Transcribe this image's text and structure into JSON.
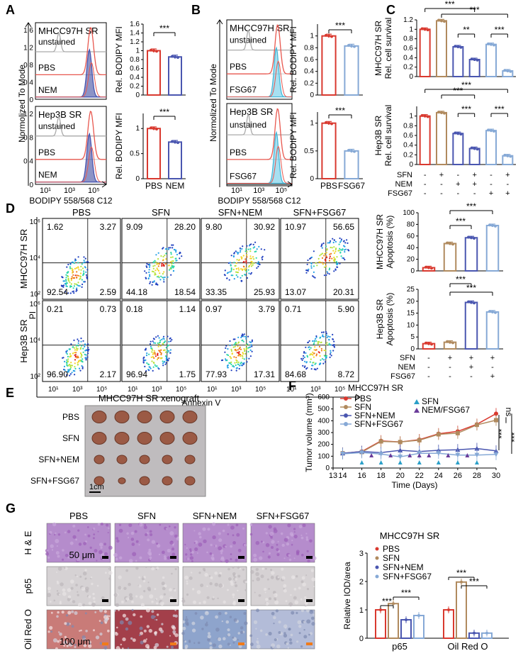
{
  "panel_letters": [
    "A",
    "B",
    "C",
    "D",
    "E",
    "F",
    "G"
  ],
  "colors": {
    "pbs": "#d9392f",
    "sfn": "#b08a5e",
    "nem": "#4a56b0",
    "fsg": "#86a9d6",
    "nemfill": "#2e3a98",
    "fsgfill": "#5fc6e6",
    "unstained": "#aaaaaa",
    "red": "#e8574e"
  },
  "A": {
    "flow_ylabel": "Normolized To Mode",
    "flow_xlabel": "BODIPY 558/568 C12",
    "x_ticks": [
      "10¹",
      "10³",
      "10⁵"
    ],
    "top": {
      "cell": "MHCC97H SR",
      "tracks": [
        "unstained",
        "PBS",
        "NEM"
      ]
    },
    "bottom": {
      "cell": "Hep3B SR",
      "tracks": [
        "unstained",
        "PBS",
        "NEM"
      ]
    }
  },
  "B": {
    "flow_ylabel": "Normolized To Mode",
    "flow_xlabel": "BODIPY 558/568 C12",
    "x_ticks": [
      "10¹",
      "10³",
      "10⁵"
    ],
    "top": {
      "cell": "MHCC97H SR",
      "tracks": [
        "unstained",
        "PBS",
        "FSG67"
      ]
    },
    "bottom": {
      "cell": "Hep3B SR",
      "tracks": [
        "unstained",
        "PBS",
        "FSG67"
      ]
    }
  },
  "C_row": {
    "labels": [
      "SFN",
      "NEM",
      "FSG67"
    ],
    "marks": [
      [
        "-",
        "+",
        "-",
        "+",
        "-",
        "+"
      ],
      [
        "-",
        "-",
        "+",
        "+",
        "-",
        "-"
      ],
      [
        "-",
        "-",
        "-",
        "-",
        "+",
        "+"
      ]
    ]
  },
  "D": {
    "cols": [
      "PBS",
      "SFN",
      "SFN+NEM",
      "SFN+FSG67"
    ],
    "rows": [
      "MHCC97H SR",
      "Hep3B SR"
    ],
    "ylabel": "PI",
    "xlabel": "Annexin V",
    "y_ticks": [
      "10⁶",
      "10⁴",
      "10²"
    ],
    "x_ticks": [
      "10¹",
      "10³",
      "10⁵"
    ],
    "quadrants": [
      [
        [
          "1.62",
          "3.27",
          "92.54",
          "2.59"
        ],
        [
          "9.09",
          "28.20",
          "44.18",
          "18.54"
        ],
        [
          "9.80",
          "30.92",
          "33.35",
          "25.93"
        ],
        [
          "10.97",
          "56.65",
          "13.07",
          "20.31"
        ]
      ],
      [
        [
          "0.21",
          "0.73",
          "96.90",
          "2.17"
        ],
        [
          "0.18",
          "1.14",
          "96.94",
          "1.75"
        ],
        [
          "0.97",
          "3.79",
          "77.93",
          "17.31"
        ],
        [
          "0.71",
          "5.90",
          "84.68",
          "8.72"
        ]
      ]
    ],
    "row_labels": [
      [
        "SFN",
        "-",
        "+",
        "+",
        "+"
      ],
      [
        "NEM",
        "-",
        "-",
        "+",
        "-"
      ],
      [
        "FSG67",
        "-",
        "-",
        "-",
        "+"
      ]
    ]
  },
  "E": {
    "title": "MHCC97H SR xenograft",
    "rows": [
      "PBS",
      "SFN",
      "SFN+NEM",
      "SFN+FSG67"
    ],
    "scale": "1cm"
  },
  "G": {
    "cols": [
      "PBS",
      "SFN",
      "SFN+NEM",
      "SFN+FSG67"
    ],
    "rows": [
      "H & E",
      "p65",
      "Oil Red O"
    ],
    "scale1": "50 μm",
    "scale2": "100 μm",
    "chart_title": "MHCC97H SR",
    "legend": [
      "PBS",
      "SFN",
      "SFN+NEM",
      "SFN+FSG67"
    ]
  },
  "chart_data": [
    {
      "id": "A_top",
      "type": "bar",
      "categories": [
        "PBS",
        "NEM"
      ],
      "values": [
        1.0,
        0.86
      ],
      "ylabel": "Rel. BODIPY MFI",
      "ylim": [
        0,
        1.6
      ],
      "yticks": [
        0,
        0.2,
        0.4,
        0.6,
        0.8,
        1,
        1.2,
        1.4,
        1.6
      ],
      "sig": [
        {
          "a": 0,
          "b": 1,
          "label": "***"
        }
      ],
      "xlabels_shown": false
    },
    {
      "id": "A_bot",
      "type": "bar",
      "categories": [
        "PBS",
        "NEM"
      ],
      "values": [
        1.0,
        0.73
      ],
      "ylabel": "Rel. BODIPY MFI",
      "ylim": [
        0,
        1.3
      ],
      "yticks": [
        0,
        0.5,
        1
      ],
      "sig": [
        {
          "a": 0,
          "b": 1,
          "label": "***"
        }
      ],
      "xlabels_shown": true
    },
    {
      "id": "B_top",
      "type": "bar",
      "categories": [
        "PBS",
        "FSG67"
      ],
      "values": [
        1.0,
        0.83
      ],
      "ylabel": "Rel. BODIPY MFI",
      "ylim": [
        0,
        1.2
      ],
      "yticks": [
        0,
        0.2,
        0.4,
        0.6,
        0.8,
        1
      ],
      "sig": [
        {
          "a": 0,
          "b": 1,
          "label": "***"
        }
      ],
      "xlabels_shown": false
    },
    {
      "id": "B_bot",
      "type": "bar",
      "categories": [
        "PBS",
        "FSG67"
      ],
      "values": [
        1.0,
        0.5
      ],
      "ylabel": "Rel. BODIPY MFI",
      "ylim": [
        0,
        1.2
      ],
      "yticks": [
        0,
        0.5,
        1
      ],
      "sig": [
        {
          "a": 0,
          "b": 1,
          "label": "***"
        }
      ],
      "xlabels_shown": true
    },
    {
      "id": "C_top",
      "type": "bar",
      "categories": [
        "PBS",
        "SFN",
        "NEM",
        "SFN+NEM",
        "FSG67",
        "SFN+FSG67"
      ],
      "values": [
        1.0,
        1.18,
        0.63,
        0.36,
        0.68,
        0.12
      ],
      "ylabel": "MHCC97H SR\nRel. cell survival",
      "ylim": [
        0,
        1.2
      ],
      "yticks": [
        0,
        0.2,
        0.4,
        0.6,
        0.8,
        1,
        1.2
      ],
      "sig": [
        {
          "a": 0,
          "b": 3,
          "label": "***"
        },
        {
          "a": 1,
          "b": 5,
          "label": "***"
        },
        {
          "a": 2,
          "b": 3,
          "label": "**"
        },
        {
          "a": 4,
          "b": 5,
          "label": "***"
        },
        {
          "a": 1,
          "b": 3,
          "label": ""
        }
      ]
    },
    {
      "id": "C_bot",
      "type": "bar",
      "categories": [
        "PBS",
        "SFN",
        "NEM",
        "SFN+NEM",
        "FSG67",
        "SFN+FSG67"
      ],
      "values": [
        1.0,
        1.07,
        0.64,
        0.33,
        0.7,
        0.18
      ],
      "ylabel": "Hep3B SR\nRel. cell survival",
      "ylim": [
        0,
        1.2
      ],
      "yticks": [
        0,
        0.2,
        0.4,
        0.6,
        0.8,
        1
      ],
      "sig": [
        {
          "a": 1,
          "b": 3,
          "label": "***"
        },
        {
          "a": 0,
          "b": 5,
          "label": "***"
        },
        {
          "a": 2,
          "b": 3,
          "label": "***"
        },
        {
          "a": 4,
          "b": 5,
          "label": "***"
        }
      ]
    },
    {
      "id": "D_top",
      "type": "bar",
      "categories": [
        "PBS",
        "SFN",
        "SFN+NEM",
        "SFN+FSG67"
      ],
      "values": [
        5.5,
        47,
        57,
        78
      ],
      "ylabel": "MHCC97H SR\nApoptosis (%)",
      "ylim": [
        0,
        100
      ],
      "yticks": [
        0,
        20,
        40,
        60,
        80,
        100
      ],
      "sig": [
        {
          "a": 1,
          "b": 3,
          "label": "***"
        },
        {
          "a": 1,
          "b": 2,
          "label": "***"
        }
      ]
    },
    {
      "id": "D_bot",
      "type": "bar",
      "categories": [
        "PBS",
        "SFN",
        "SFN+NEM",
        "SFN+FSG67"
      ],
      "values": [
        2.2,
        2.8,
        19.5,
        15.5
      ],
      "ylabel": "Hep3B SR\nApoptosis (%)",
      "ylim": [
        0,
        25
      ],
      "yticks": [
        0,
        5,
        10,
        15,
        20,
        25
      ],
      "sig": [
        {
          "a": 1,
          "b": 2,
          "label": "***"
        },
        {
          "a": 1,
          "b": 3,
          "label": "***"
        }
      ]
    },
    {
      "id": "F",
      "type": "line",
      "title": "MHCC97H SR",
      "xlabel": "Time (Days)",
      "ylabel": "Tumor volume (mm³)",
      "x": [
        14,
        16,
        18,
        20,
        22,
        24,
        26,
        28,
        30
      ],
      "x_ticks": [
        13,
        14,
        16,
        18,
        20,
        22,
        24,
        26,
        28,
        30
      ],
      "ylim": [
        0,
        600
      ],
      "yticks": [
        0,
        100,
        200,
        300,
        400,
        500,
        600
      ],
      "series": [
        {
          "name": "PBS",
          "values": [
            125,
            140,
            230,
            220,
            240,
            290,
            310,
            370,
            460
          ]
        },
        {
          "name": "SFN",
          "values": [
            125,
            135,
            225,
            220,
            235,
            285,
            295,
            365,
            405
          ]
        },
        {
          "name": "SFN+NEM",
          "values": [
            125,
            140,
            130,
            150,
            140,
            150,
            155,
            165,
            145
          ]
        },
        {
          "name": "SFN+FSG67",
          "values": [
            120,
            130,
            118,
            95,
            125,
            125,
            110,
            110,
            115
          ]
        }
      ],
      "injections": [
        {
          "name": "SFN",
          "days": [
            16,
            18,
            20,
            22,
            24,
            26,
            28
          ]
        },
        {
          "name": "NEM/FSG67",
          "days": [
            17,
            19,
            21,
            22,
            23,
            25,
            27
          ]
        }
      ],
      "sig": [
        "ns",
        "***",
        "***"
      ]
    },
    {
      "id": "G_chart",
      "type": "bar",
      "title": "MHCC97H SR",
      "groups": [
        "p65",
        "Oil Red O"
      ],
      "series": [
        {
          "name": "PBS",
          "values": [
            1.0,
            1.0
          ]
        },
        {
          "name": "SFN",
          "values": [
            1.22,
            1.98
          ]
        },
        {
          "name": "SFN+NEM",
          "values": [
            0.65,
            0.18
          ]
        },
        {
          "name": "SFN+FSG67",
          "values": [
            0.8,
            0.18
          ]
        }
      ],
      "ylabel": "Relative IOD/area",
      "ylim": [
        0,
        3
      ],
      "yticks": [
        0,
        1,
        2,
        3
      ],
      "sig": [
        {
          "g": 0,
          "a": 0,
          "b": 1,
          "label": "***"
        },
        {
          "g": 0,
          "a": 1,
          "b": 3,
          "label": "***"
        },
        {
          "g": 1,
          "a": 1,
          "b": 3,
          "label": "***"
        },
        {
          "g": 1,
          "a": 0,
          "b": 2,
          "label": "***"
        }
      ]
    }
  ]
}
